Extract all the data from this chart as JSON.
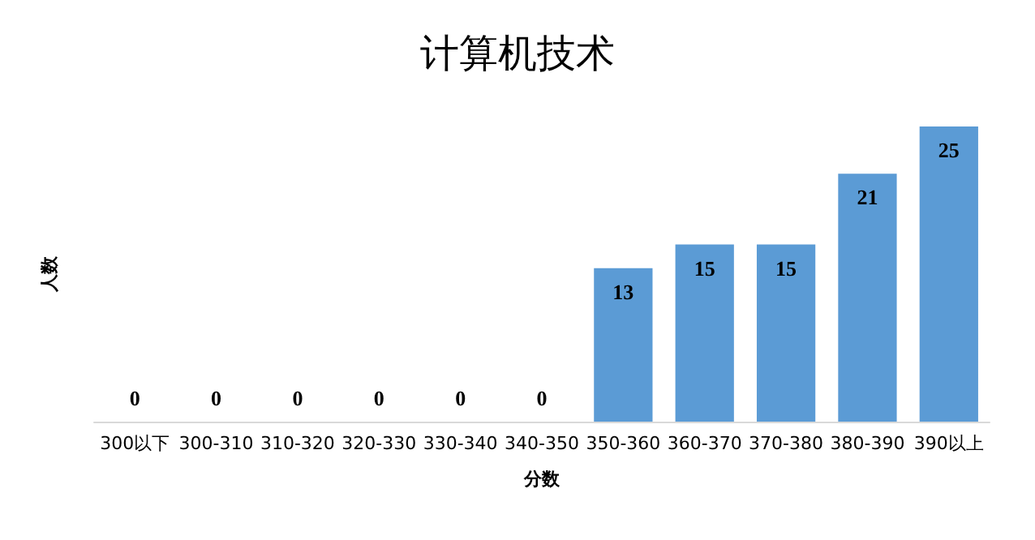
{
  "chart_data": {
    "type": "bar",
    "title": "计算机技术",
    "xlabel": "分数",
    "ylabel": "人数",
    "categories": [
      "300以下",
      "300-310",
      "310-320",
      "320-330",
      "330-340",
      "340-350",
      "350-360",
      "360-370",
      "370-380",
      "380-390",
      "390以上"
    ],
    "values": [
      0,
      0,
      0,
      0,
      0,
      0,
      13,
      15,
      15,
      21,
      25
    ],
    "color": "#5b9bd5",
    "data_labels": true,
    "tick_labels": "x",
    "grid": false
  }
}
